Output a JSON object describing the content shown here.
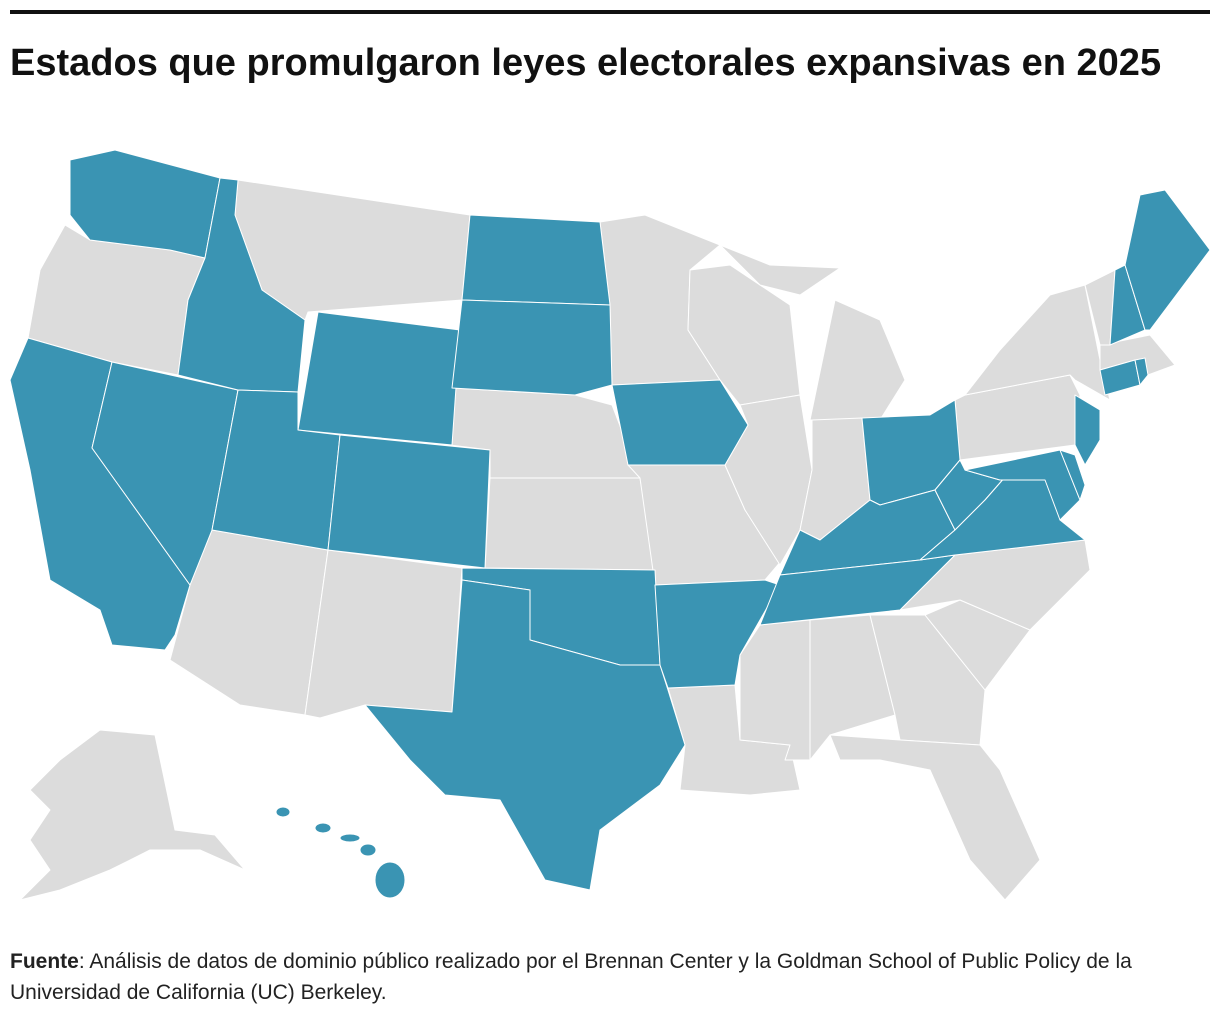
{
  "title": "Estados que promulgaron leyes electorales expansivas en 2025",
  "map": {
    "highlight_color": "#3a94b3",
    "other_color": "#dcdcdc"
  },
  "source": {
    "label": "Fuente",
    "text": ":  Análisis de datos de dominio público realizado por el Brennan Center y la Goldman School of Public Policy de la Universidad de California (UC) Berkeley."
  }
}
